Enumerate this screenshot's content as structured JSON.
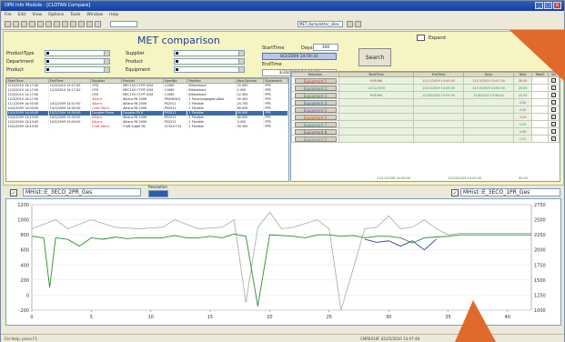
{
  "window": {
    "title": "OPR Info Module - [CLOTAN Compare]"
  },
  "menu": [
    "File",
    "Edit",
    "View",
    "Options",
    "Tools",
    "Window",
    "Help"
  ],
  "toolbar": {
    "selector_value": "MET_Kompletter_alles"
  },
  "form": {
    "title": "MET comparison",
    "labels": {
      "product_type": "ProductType",
      "department": "Department",
      "product": "Product",
      "supplier": "Supplier",
      "product2": "Product",
      "equipment": "Equipment",
      "start_time": "StartTime",
      "end_time": "EndTime",
      "days": "Days"
    },
    "days_value": "300",
    "start_time_value": "8/2/2009 14:00:31",
    "end_time_value": "3/28/2010 14:00:31",
    "search_label": "Search",
    "expand_label": "Expand"
  },
  "table": {
    "columns": [
      "StartTime",
      "EndTime",
      "Supplier",
      "Product",
      "OpenNo",
      "Position",
      "HourCounter",
      "Equipment"
    ],
    "rows": [
      {
        "c": [
          "12/3/2010 14:17:00",
          "12/3/2010 15:17:00",
          "CFD",
          "MEC150 CT-PP 4/34",
          "11080",
          "Bildverkauf",
          "22.000",
          "PPS"
        ],
        "red": false
      },
      {
        "c": [
          "12/3/2010 14:17:00",
          "12/3/2010 14:17:00",
          "CFD",
          "MEC150 CT-PP 4/34",
          "11080",
          "Bildverkauf",
          "2.000",
          "PPS"
        ],
        "red": false
      },
      {
        "c": [
          "12/3/2010 14:17:00",
          "",
          "CFD",
          "MEC150 CT-PP 4/34",
          "11080",
          "Bildverkauf",
          "12.300",
          "PPS"
        ],
        "red": false
      },
      {
        "c": [
          "12/3/2010 14:17:00",
          "",
          "Allianz",
          "Allianz PA 2006",
          "PM54E401",
          "1 Forschungsgeb pDoe",
          "92.300",
          "PPS"
        ],
        "red": true
      },
      {
        "c": [
          "11/1/2009 14:00:00",
          "10/2/2009 14:07:00",
          "Allianz",
          "Allianz PA 2006",
          "PS2011",
          "1 Flexible",
          "25.700",
          "PPS"
        ],
        "red": true
      },
      {
        "c": [
          "10/2/2009 14:00:00",
          "10/2/2009 14:00:00",
          "Craft Fabric",
          "Allianz PA 2006",
          "PS2011",
          "1 Flexible",
          "80.000",
          "PPS"
        ],
        "red": true
      },
      {
        "c": [
          "10/2/2009 14:00:00",
          "10/2/2009 14:00:00",
          "Douglas Farne",
          "Douglas PA 6",
          "PS2011",
          "1 Flexible",
          "80.000",
          "PPS"
        ],
        "red": true,
        "sel": true
      },
      {
        "c": [
          "10/2/2009 13:43:00",
          "10/2/2009 13:43:00",
          "Allianz",
          "Allianz PA 2006",
          "PS2011",
          "1 Flexible",
          "80.000",
          "PPS"
        ],
        "red": true
      },
      {
        "c": [
          "10/2/2009 13:43:00",
          "10/2/2009 13:43:00",
          "Allianz",
          "Allianz PA 2006",
          "PS2011",
          "1 Flexible",
          "3.000",
          "PPS"
        ],
        "red": true
      },
      {
        "c": [
          "10/2/2009 13:43:00",
          "",
          "Craft Fabric",
          "Craft Super PA",
          "CCS10 F14",
          "1 Flexible",
          "99.300",
          "PPS"
        ],
        "red": true
      }
    ]
  },
  "equipment": {
    "columns": [
      "Selection",
      "StartTime",
      "EndTime",
      "Days",
      "Total",
      "Total2",
      "Sel"
    ],
    "rows": [
      {
        "name": "Equipment 1",
        "color": "#c0392b",
        "code": "M0E466",
        "start": "11/11/2009 14:40:00",
        "end": "11/13/2009 15:07:00",
        "days": "38.00"
      },
      {
        "name": "Equipment 2",
        "color": "#2e8b57",
        "code": "12/11/2010",
        "start": "12/14/2009 14:00:00",
        "end": "12/13/2009 14:00:00",
        "days": "20.00"
      },
      {
        "name": "Equipment 3",
        "color": "#2e8b57",
        "code": "M0E464",
        "start": "12/28/2009 15:03:00",
        "end": "12/8/2010 13:46:00",
        "days": "20.00"
      },
      {
        "name": "Equipment 4",
        "color": "#2b6cb0",
        "code": "",
        "start": "",
        "end": "",
        "days": "0.00"
      },
      {
        "name": "Equipment 5",
        "color": "#8e44ad",
        "code": "",
        "start": "",
        "end": "",
        "days": "0.00"
      },
      {
        "name": "Equipment 6",
        "color": "#d35400",
        "code": "",
        "start": "",
        "end": "",
        "days": "0.00"
      },
      {
        "name": "Equipment 7",
        "color": "#16a085",
        "code": "",
        "start": "",
        "end": "",
        "days": "0.00"
      },
      {
        "name": "Equipment 8",
        "color": "#6d4c41",
        "code": "",
        "start": "",
        "end": "",
        "days": "0.00"
      },
      {
        "name": "Equipment 9",
        "color": "#7f8c8d",
        "code": "",
        "start": "",
        "end": "",
        "days": "0.00"
      }
    ],
    "summary": {
      "start": "11/11/2009 14:00:00",
      "end": "12/13/2009 14:00:00",
      "days": "80.00"
    }
  },
  "chartbar": {
    "left_series": "MHist::E_3ECO_2PR_Ges",
    "resolution_label": "Resolution",
    "right_series": "MHist::E_3ECO_1PR_Ges"
  },
  "chart_data": {
    "type": "line",
    "xlim": [
      0,
      42
    ],
    "xticks": [
      "0",
      "5",
      "10",
      "15",
      "20",
      "25",
      "30",
      "35",
      "40"
    ],
    "ylim": [
      -200,
      1200
    ],
    "yticks_left": [
      "1200",
      "1000",
      "800",
      "600",
      "400",
      "200",
      "0",
      "-200"
    ],
    "yticks_right": [
      "2750",
      "2500",
      "2250",
      "2000",
      "1750",
      "1500",
      "1250",
      "1000"
    ],
    "series": [
      {
        "color": "#2c8c34",
        "x": [
          0,
          1,
          1.5,
          2,
          3,
          4,
          5,
          6,
          7,
          8,
          9,
          10,
          11,
          12,
          13,
          14,
          15,
          16,
          17,
          18,
          19,
          20,
          21,
          22,
          23,
          24,
          25,
          26,
          27,
          28,
          29,
          30,
          31,
          32,
          33,
          34,
          35,
          36,
          37,
          38,
          39,
          40,
          41,
          42
        ],
        "y": [
          780,
          760,
          100,
          760,
          740,
          650,
          760,
          740,
          770,
          750,
          760,
          760,
          760,
          790,
          760,
          760,
          780,
          760,
          810,
          780,
          -150,
          800,
          790,
          780,
          760,
          800,
          800,
          780,
          790,
          760,
          780,
          780,
          760,
          690,
          760,
          770,
          780,
          800,
          800,
          800,
          800,
          800,
          800,
          800
        ]
      },
      {
        "color": "#aab4aa",
        "x": [
          0,
          2,
          3,
          5,
          7,
          9,
          11,
          12,
          14,
          16,
          17,
          18,
          19,
          20,
          21,
          22,
          24,
          25,
          26,
          28,
          29,
          30,
          31,
          32,
          33,
          34,
          35,
          36,
          38,
          40,
          42
        ],
        "y": [
          880,
          1000,
          880,
          1000,
          900,
          880,
          900,
          1000,
          880,
          900,
          1000,
          -100,
          900,
          1100,
          880,
          900,
          1000,
          880,
          -200,
          880,
          900,
          1050,
          880,
          900,
          1000,
          880,
          800,
          820,
          820,
          820,
          820
        ]
      },
      {
        "color": "#2b3fa8",
        "x": [
          28,
          29,
          30,
          31,
          32,
          33,
          34
        ],
        "y": [
          740,
          700,
          720,
          650,
          720,
          600,
          740
        ]
      }
    ]
  },
  "statusbar": {
    "left": "For Help, press F1",
    "right": "CMRE010F   02/25/2010 14:07:48"
  }
}
